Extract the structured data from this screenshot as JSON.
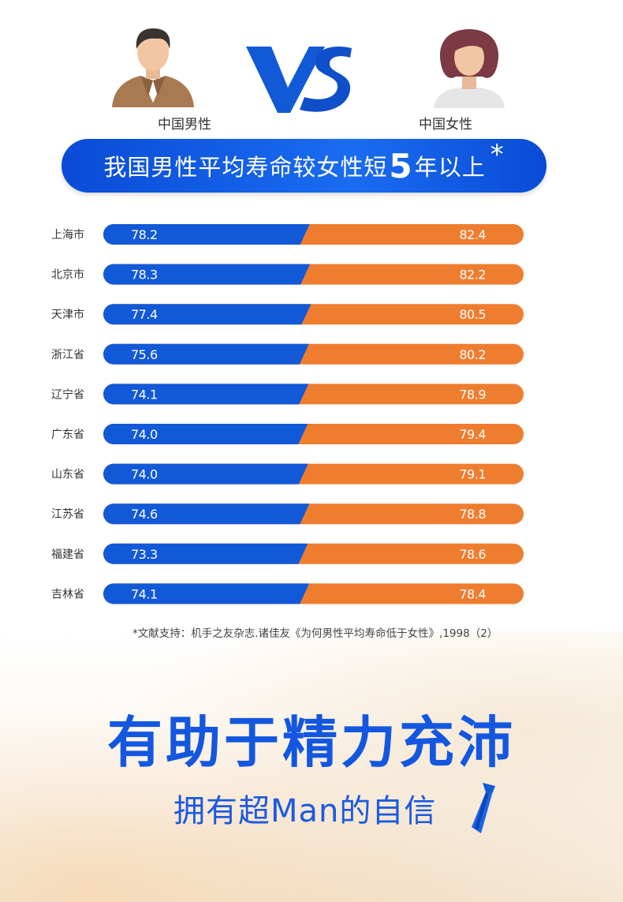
{
  "header": {
    "male_label": "中国男性",
    "female_label": "中国女性",
    "headline_pre": "我国男性平均寿命较女性短",
    "headline_num": "5",
    "headline_post": "年以上",
    "headline_star": "*"
  },
  "colors": {
    "male_bar": "#1259d8",
    "female_bar": "#ef7d2f",
    "headline_bg": "#0f55db",
    "slogan": "#1357e0"
  },
  "chart_data": {
    "type": "bar",
    "categories": [
      "上海市",
      "北京市",
      "天津市",
      "浙江省",
      "辽宁省",
      "广东省",
      "山东省",
      "江苏省",
      "福建省",
      "吉林省"
    ],
    "series": [
      {
        "name": "中国男性",
        "values": [
          "78.2",
          "78.3",
          "77.4",
          "75.6",
          "74.1",
          "74.0",
          "74.0",
          "74.6",
          "73.3",
          "74.1"
        ]
      },
      {
        "name": "中国女性",
        "values": [
          "82.4",
          "82.2",
          "80.5",
          "80.2",
          "78.9",
          "79.4",
          "79.1",
          "78.8",
          "78.6",
          "78.4"
        ]
      }
    ],
    "title": "我国男性平均寿命较女性短5年以上",
    "xlabel": "",
    "ylabel": ""
  },
  "footnote": "*文献支持：机手之友杂志.诸佳友《为何男性平均寿命低于女性》,1998（2）",
  "slogan": "有助于精力充沛",
  "sub_slogan": "拥有超Man的自信"
}
